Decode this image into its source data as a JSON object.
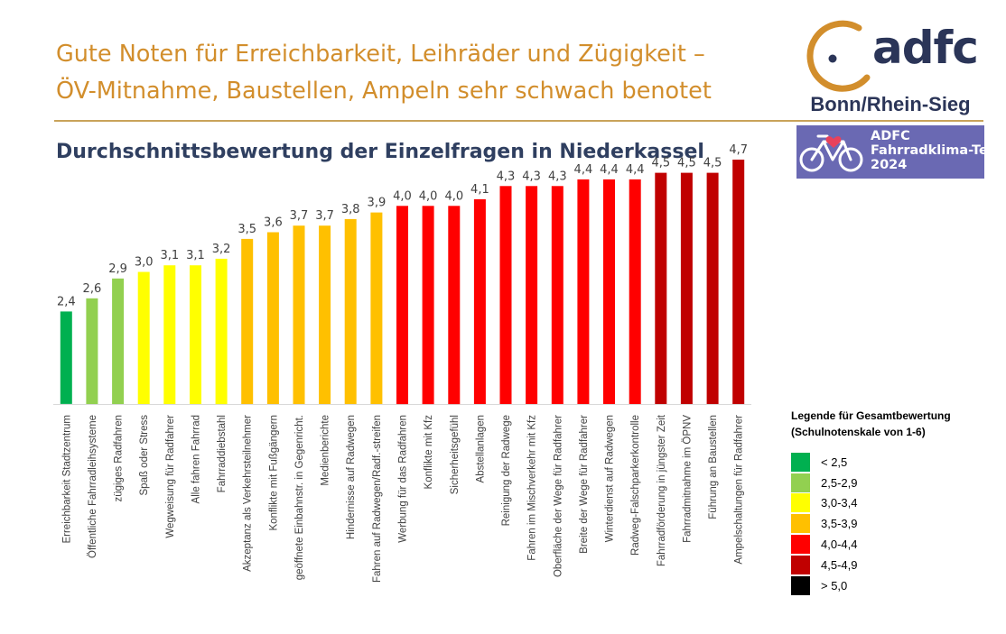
{
  "header": {
    "headline_line1": "Gute Noten für Erreichbarkeit, Leihräder und Zügigkeit –",
    "headline_line2": "ÖV-Mitnahme, Baustellen, Ampeln sehr schwach benotet",
    "subtitle": "Durchschnittsbewertung der Einzelfragen in Niederkassel"
  },
  "branding": {
    "logo_text": "adfc",
    "region": "Bonn/Rhein-Sieg",
    "badge_line1": "ADFC",
    "badge_line2": "Fahrradklima-Test",
    "badge_line3": "2024"
  },
  "chart_data": {
    "type": "bar",
    "categories": [
      "Erreichbarkeit Stadtzentrum",
      "Öffentliche Fahrradleihsysteme",
      "zügiges Radfahren",
      "Spaß oder Stress",
      "Wegweisung für Radfahrer",
      "Alle fahren Fahrrad",
      "Fahrraddiebstahl",
      "Akzeptanz als Verkehrsteilnehmer",
      "Konflikte mit Fußgängern",
      "geöffnete Einbahnstr. in Gegenricht.",
      "Medienberichte",
      "Hindernisse auf Radwegen",
      "Fahren auf Radwegen/Radf.-streifen",
      "Werbung für das Radfahren",
      "Konflikte mit Kfz",
      "Sicherheitsgefühl",
      "Abstellanlagen",
      "Reinigung der Radwege",
      "Fahren im Mischverkehr mit Kfz",
      "Oberfläche der Wege für Radfahrer",
      "Breite der Wege für Radfahrer",
      "Winterdienst auf Radwegen",
      "Radweg-Falschparkerkontrolle",
      "Fahrradförderung in jüngster Zeit",
      "Fahrradmitnahme im ÖPNV",
      "Führung an Baustellen",
      "Ampelschaltungen für Radfahrer"
    ],
    "values": [
      2.4,
      2.6,
      2.9,
      3.0,
      3.1,
      3.1,
      3.2,
      3.5,
      3.6,
      3.7,
      3.7,
      3.8,
      3.9,
      4.0,
      4.0,
      4.0,
      4.1,
      4.3,
      4.3,
      4.3,
      4.4,
      4.4,
      4.4,
      4.5,
      4.5,
      4.5,
      4.7
    ],
    "value_labels": [
      "2,4",
      "2,6",
      "2,9",
      "3,0",
      "3,1",
      "3,1",
      "3,2",
      "3,5",
      "3,6",
      "3,7",
      "3,7",
      "3,8",
      "3,9",
      "4,0",
      "4,0",
      "4,0",
      "4,1",
      "4,3",
      "4,3",
      "4,3",
      "4,4",
      "4,4",
      "4,4",
      "4,5",
      "4,5",
      "4,5",
      "4,7"
    ],
    "ylim": [
      1,
      5
    ],
    "bar_colors": [
      "#00b050",
      "#92d050",
      "#92d050",
      "#ffff00",
      "#ffff00",
      "#ffff00",
      "#ffff00",
      "#ffc000",
      "#ffc000",
      "#ffc000",
      "#ffc000",
      "#ffc000",
      "#ffc000",
      "#ff0000",
      "#ff0000",
      "#ff0000",
      "#ff0000",
      "#ff0000",
      "#ff0000",
      "#ff0000",
      "#ff0000",
      "#ff0000",
      "#ff0000",
      "#c00000",
      "#c00000",
      "#c00000",
      "#c00000"
    ],
    "grid": false,
    "legend": {
      "title_line1": "Legende für Gesamtbewertung",
      "title_line2": "(Schulnotenskale von 1-6)",
      "position": "bottom-right",
      "items": [
        {
          "label": "< 2,5",
          "color": "#00b050"
        },
        {
          "label": "2,5-2,9",
          "color": "#92d050"
        },
        {
          "label": "3,0-3,4",
          "color": "#ffff00"
        },
        {
          "label": "3,5-3,9",
          "color": "#ffc000"
        },
        {
          "label": "4,0-4,4",
          "color": "#ff0000"
        },
        {
          "label": "4,5-4,9",
          "color": "#c00000"
        },
        {
          "label": "> 5,0",
          "color": "#000000"
        }
      ]
    }
  }
}
